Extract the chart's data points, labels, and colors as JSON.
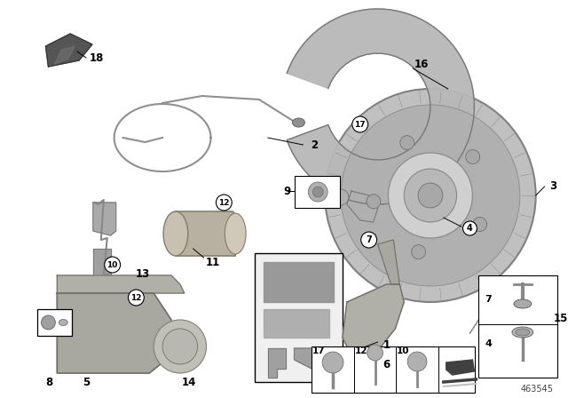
{
  "title": "",
  "background_color": "#ffffff",
  "part_number": "463545",
  "fig_width": 6.4,
  "fig_height": 4.48,
  "dpi": 100,
  "label_color": "#000000",
  "line_color": "#000000"
}
